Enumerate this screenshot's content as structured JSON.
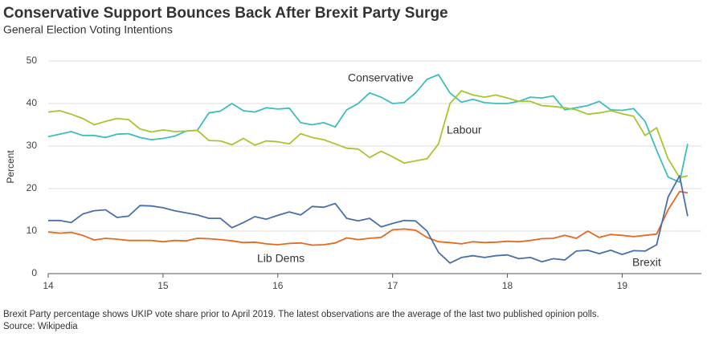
{
  "chart_data": {
    "type": "line",
    "title": "Conservative Support Bounces Back After Brexit Party Surge",
    "subtitle": "General Election Voting Intentions",
    "y_label": "Percent",
    "note": "Brexit Party percentage shows UKIP vote share prior to April 2019. The latest observations are the average of the last two published opinion polls.",
    "source": "Source: Wikipedia",
    "x": [
      14,
      14.1,
      14.2,
      14.3,
      14.4,
      14.5,
      14.6,
      14.7,
      14.8,
      14.9,
      15,
      15.1,
      15.2,
      15.3,
      15.4,
      15.5,
      15.6,
      15.7,
      15.8,
      15.9,
      16,
      16.1,
      16.2,
      16.3,
      16.4,
      16.5,
      16.6,
      16.7,
      16.8,
      16.9,
      17,
      17.1,
      17.2,
      17.3,
      17.4,
      17.5,
      17.6,
      17.7,
      17.8,
      17.9,
      18,
      18.1,
      18.2,
      18.3,
      18.4,
      18.5,
      18.6,
      18.7,
      18.8,
      18.9,
      19,
      19.1,
      19.2,
      19.3,
      19.4,
      19.5,
      19.57
    ],
    "series": [
      {
        "name": "Conservative",
        "color": "#3dbdbd",
        "values": [
          32.2,
          32.8,
          33.4,
          32.5,
          32.5,
          32,
          32.8,
          32.9,
          32,
          31.5,
          31.8,
          32.3,
          33.5,
          33.7,
          37.8,
          38.2,
          40,
          38.3,
          38,
          39,
          38.7,
          38.9,
          35.5,
          35,
          35.5,
          34.5,
          38.5,
          40,
          42.5,
          41.5,
          40,
          40.2,
          42.5,
          45.7,
          46.8,
          42.5,
          40.3,
          41,
          40.2,
          40,
          40,
          40.5,
          41.5,
          41.3,
          41.8,
          38.5,
          39,
          39.5,
          40.5,
          38.5,
          38.4,
          38.8,
          35.8,
          29,
          22.7,
          21.5,
          30.5
        ]
      },
      {
        "name": "Labour",
        "color": "#a6c630",
        "values": [
          38,
          38.3,
          37.5,
          36.5,
          35,
          35.8,
          36.5,
          36.2,
          34,
          33.3,
          33.8,
          33.4,
          33.5,
          33.7,
          31.3,
          31.2,
          30.3,
          31.8,
          30.2,
          31.2,
          31,
          30.5,
          32.9,
          32,
          31.5,
          30.5,
          29.5,
          29.3,
          27.3,
          28.8,
          27.5,
          26,
          26.5,
          27,
          30.5,
          40,
          43,
          42,
          41.5,
          42,
          41.3,
          40.5,
          40.5,
          39.5,
          39.3,
          39,
          38.5,
          37.5,
          37.8,
          38.3,
          37.6,
          37,
          32.5,
          34.3,
          27,
          22.6,
          23
        ]
      },
      {
        "name": "Lib Dems",
        "color": "#e5691f",
        "values": [
          9.8,
          9.5,
          9.7,
          9,
          7.9,
          8.3,
          8.1,
          7.8,
          7.8,
          7.8,
          7.5,
          7.8,
          7.7,
          8.3,
          8.2,
          8,
          7.7,
          7.3,
          7.4,
          7,
          6.8,
          7.1,
          7.2,
          6.7,
          6.8,
          7.2,
          8.4,
          8,
          8.3,
          8.5,
          10.3,
          10.5,
          10.2,
          8.5,
          7.5,
          7.3,
          7,
          7.5,
          7.3,
          7.4,
          7.6,
          7.5,
          7.8,
          8.2,
          8.3,
          9,
          8.3,
          10,
          8.5,
          9.2,
          9,
          8.7,
          9,
          9.3,
          15,
          19.3,
          19
        ]
      },
      {
        "name": "Brexit",
        "color": "#4a6fa8",
        "values": [
          12.5,
          12.5,
          12,
          14,
          14.8,
          15,
          13.2,
          13.5,
          16,
          15.9,
          15.5,
          14.8,
          14.3,
          13.8,
          13,
          13,
          10.8,
          12,
          13.4,
          12.8,
          13.7,
          14.5,
          13.8,
          15.8,
          15.6,
          16.5,
          13,
          12.4,
          13,
          11,
          11.8,
          12.5,
          12.4,
          10,
          5,
          2.5,
          3.8,
          4.2,
          3.8,
          4.2,
          4.4,
          3.5,
          3.8,
          2.8,
          3.5,
          3.2,
          5.3,
          5.5,
          4.7,
          5.5,
          4.5,
          5.4,
          5.3,
          6.8,
          18,
          23,
          13.5
        ]
      }
    ],
    "xlim": [
      14,
      19.69
    ],
    "ylim": [
      0,
      50
    ],
    "xticks": [
      14,
      15,
      16,
      17,
      18,
      19
    ],
    "yticks": [
      0,
      10,
      20,
      30,
      40,
      50
    ],
    "grid": true
  }
}
